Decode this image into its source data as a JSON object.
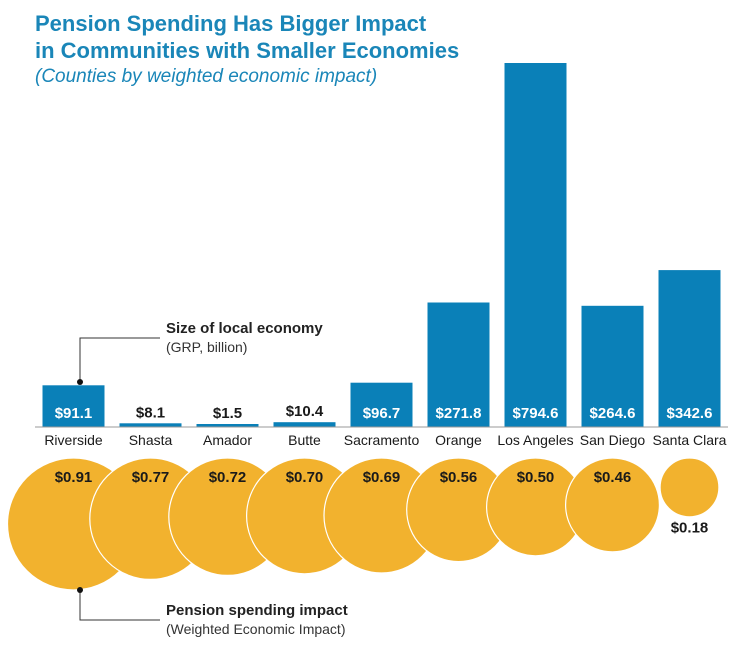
{
  "title_line1": "Pension Spending Has Bigger Impact",
  "title_line2": "in Communities with Smaller Economies",
  "subtitle": "(Counties by weighted economic impact)",
  "colors": {
    "bar": "#0a80b8",
    "bubble": "#f2b22e",
    "title": "#1a86b8"
  },
  "economy_label": {
    "title": "Size of local economy",
    "note": "(GRP, billion)"
  },
  "pension_label": {
    "title": "Pension spending impact",
    "note": "(Weighted Economic Impact)"
  },
  "chart_data": {
    "type": "bar",
    "title": "Pension Spending Has Bigger Impact in Communities with Smaller Economies",
    "subtitle": "(Counties by weighted economic impact)",
    "categories": [
      "Riverside",
      "Shasta",
      "Amador",
      "Butte",
      "Sacramento",
      "Orange",
      "Los Angeles",
      "San Diego",
      "Santa Clara"
    ],
    "series": [
      {
        "name": "Size of local economy",
        "values": [
          91.1,
          8.1,
          1.5,
          10.4,
          96.7,
          271.8,
          794.6,
          264.6,
          342.6
        ],
        "labels": [
          "$91.1",
          "$8.1",
          "$1.5",
          "$10.4",
          "$96.7",
          "$271.8",
          "$794.6",
          "$264.6",
          "$342.6"
        ]
      },
      {
        "name": "Pension spending impact",
        "values": [
          0.91,
          0.77,
          0.72,
          0.7,
          0.69,
          0.56,
          0.5,
          0.46,
          0.18
        ],
        "labels": [
          "$0.91",
          "$0.77",
          "$0.72",
          "$0.70",
          "$0.69",
          "$0.56",
          "$0.50",
          "$0.46",
          "$0.18"
        ]
      }
    ]
  }
}
